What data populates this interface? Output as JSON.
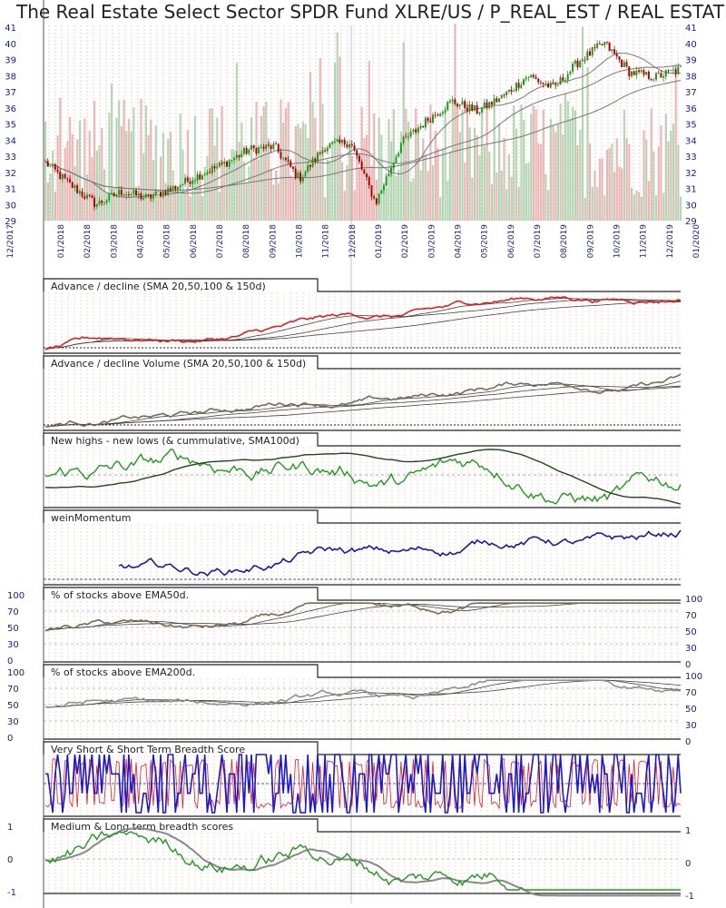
{
  "title": "The Real Estate Select Sector SPDR Fund XLRE/US / P_REAL_EST / REAL ESTATE",
  "colors": {
    "up_candle": "#1a9a1a",
    "down_candle": "#b00000",
    "volume_up": "#9cc99c",
    "volume_down": "#e4a0a0",
    "sma": "#777777",
    "ad_line": "#e02020",
    "ad_volume": "#7a6a50",
    "nhnl": "#1e9a1e",
    "momentum": "#1a1aa0",
    "ema": "#6e6e6e",
    "breadth_red": "#e02020",
    "breadth_blue": "#1a1acc",
    "axis_text": "#1a1a8c",
    "grid_red": "#e8a8a8"
  },
  "chart_data": {
    "type": "line",
    "x_dates": [
      "12/2017",
      "01/2018",
      "02/2018",
      "03/2018",
      "04/2018",
      "05/2018",
      "06/2018",
      "07/2018",
      "08/2018",
      "09/2018",
      "10/2018",
      "11/2018",
      "12/2018",
      "01/2019",
      "02/2019",
      "03/2019",
      "04/2019",
      "05/2019",
      "06/2019",
      "07/2019",
      "08/2019",
      "09/2019",
      "10/2019",
      "11/2019",
      "12/2019",
      "01/2020"
    ],
    "price": {
      "y_ticks": [
        29,
        30,
        31,
        32,
        33,
        34,
        35,
        36,
        37,
        38,
        39,
        40,
        41
      ],
      "ylim": [
        29,
        41
      ],
      "close": [
        32.6,
        31.2,
        30.0,
        30.8,
        30.4,
        31.0,
        31.8,
        32.5,
        33.4,
        33.6,
        31.6,
        33.6,
        33.9,
        30.1,
        33.8,
        35.2,
        36.4,
        35.8,
        36.7,
        38.0,
        37.2,
        38.9,
        40.0,
        38.2,
        37.9,
        38.4
      ]
    },
    "panels": [
      {
        "title": "Advance / decline (SMA 20,50,100 & 150d)",
        "y_ticks": []
      },
      {
        "title": "Advance / decline Volume (SMA 20,50,100 & 150d)",
        "y_ticks": []
      },
      {
        "title": "New highs - new lows (& cummulative, SMA100d)",
        "y_ticks": []
      },
      {
        "title": "weinMomentum",
        "y_ticks": []
      },
      {
        "title": "% of stocks above EMA50d.",
        "y_ticks": [
          "100",
          "70",
          "50",
          "30",
          "0"
        ]
      },
      {
        "title": "% of stocks above EMA200d.",
        "y_ticks": [
          "100",
          "70",
          "50",
          "30",
          "0"
        ]
      },
      {
        "title": "Very Short & Short Term Breadth Score",
        "y_ticks": []
      },
      {
        "title": "Medium & Long term breadth scores",
        "y_ticks": [
          "1",
          "0",
          "-1"
        ]
      }
    ]
  }
}
